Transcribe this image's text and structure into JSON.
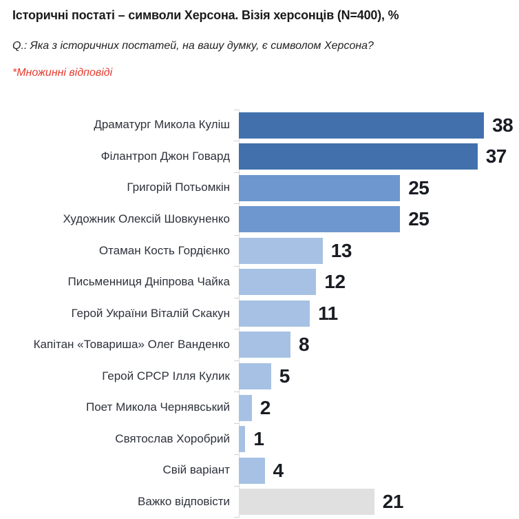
{
  "header": {
    "title": "Історичні постаті – символи Херсона. Візія херсонців (N=400), %",
    "question": "Q.: Яка з історичних постатей, на вашу думку, є символом Херсона?",
    "note": "*Множинні відповіді",
    "note_color": "#e5392e"
  },
  "chart_data": {
    "type": "bar",
    "orientation": "horizontal",
    "title": "Історичні постаті – символи Херсона. Візія херсонців (N=400), %",
    "subtitle": "Q.: Яка з історичних постатей, на вашу думку, є символом Херсона?",
    "annotation": "*Множинні відповіді",
    "unit": "%",
    "sample_size": "N=400",
    "xlim": [
      0,
      40
    ],
    "grid": false,
    "legend": "none",
    "value_labels": "outside-end",
    "categories": [
      "Драматург Микола Куліш",
      "Філантроп Джон Говард",
      "Григорій Потьомкін",
      "Художник Олексій Шовкуненко",
      "Отаман Кость Гордієнко",
      "Письменниця Дніпрова Чайка",
      "Герой України Віталій Скакун",
      "Капітан «Товариша» Олег Ванденко",
      "Герой СРСР Ілля Кулик",
      "Поет Микола Чернявський",
      "Святослав Хоробрий",
      "Свій варіант",
      "Важко відповісти"
    ],
    "values": [
      38,
      37,
      25,
      25,
      13,
      12,
      11,
      8,
      5,
      2,
      1,
      4,
      21
    ],
    "bar_colors": [
      "#4170ad",
      "#4170ad",
      "#6d97ce",
      "#6d97ce",
      "#a6c1e3",
      "#a6c1e3",
      "#a6c1e3",
      "#a6c1e3",
      "#a6c1e3",
      "#a6c1e3",
      "#a6c1e3",
      "#a6c1e3",
      "#e0e0e0"
    ],
    "value_label_color": "#191c23",
    "label_color": "#2d313a",
    "axis_color": "#dcdcdc"
  }
}
